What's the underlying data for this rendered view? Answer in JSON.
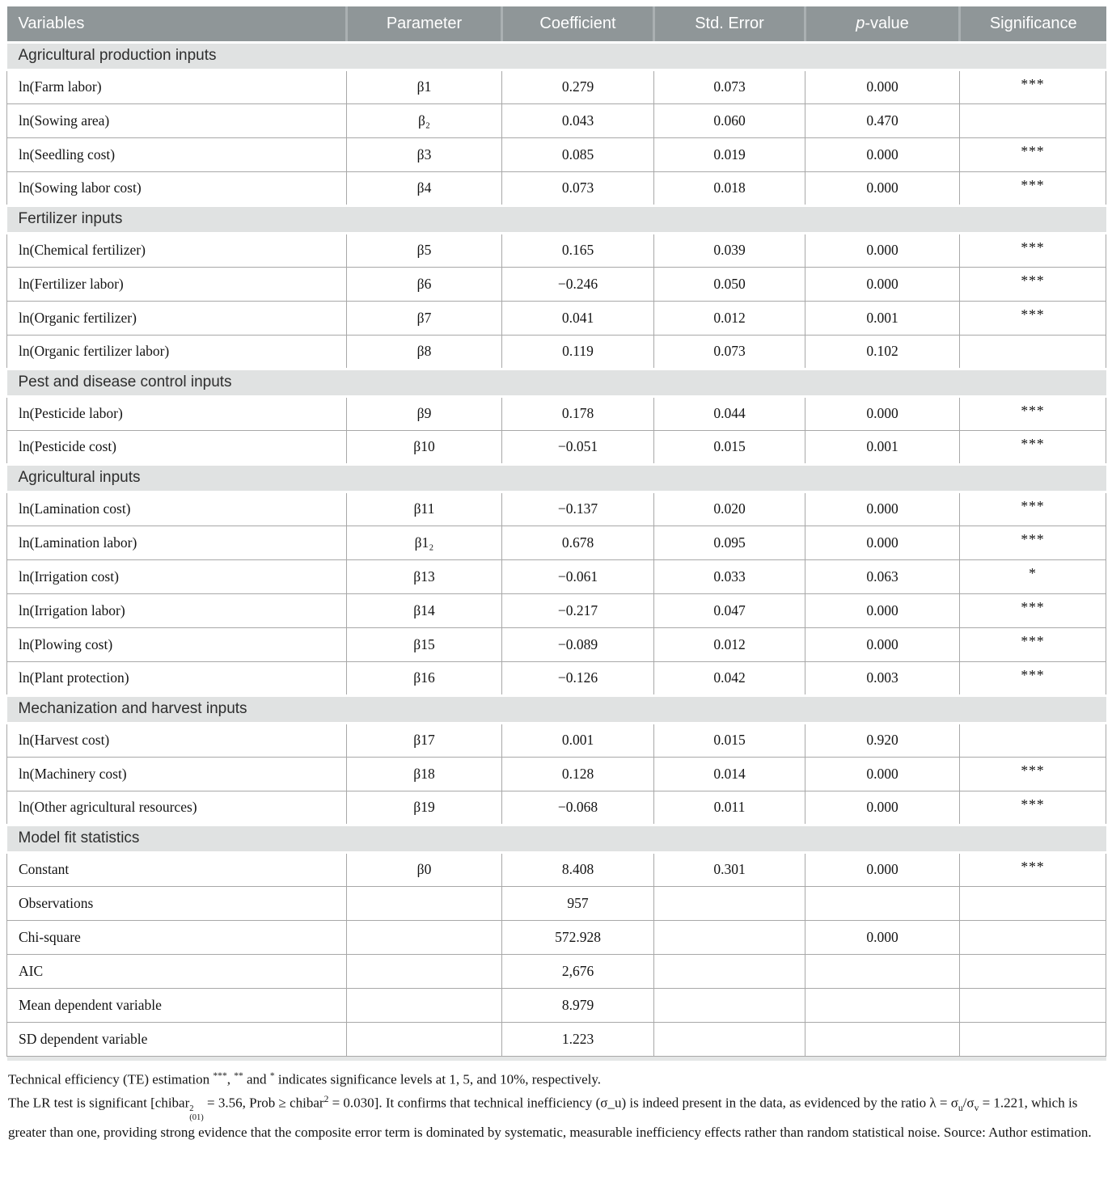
{
  "colors": {
    "header_bg": "#8f9698",
    "header_separator": "#aab0b2",
    "section_bg": "#e0e2e2",
    "cell_border": "#a8a8a8"
  },
  "header": {
    "variables": "Variables",
    "parameter": "Parameter",
    "coefficient": "Coefficient",
    "std_error": "Std. Error",
    "p_value_italic": "p",
    "p_value_rest": "-value",
    "significance": "Significance"
  },
  "table": {
    "sections": [
      {
        "title": "Agricultural production inputs",
        "rows": [
          {
            "variable": "ln(Farm labor)",
            "parameter": "β1",
            "coefficient": "0.279",
            "std_error": "0.073",
            "p_value": "0.000",
            "significance": "***"
          },
          {
            "variable": "ln(Sowing area)",
            "parameter": "β₂",
            "coefficient": "0.043",
            "std_error": "0.060",
            "p_value": "0.470",
            "significance": ""
          },
          {
            "variable": "ln(Seedling cost)",
            "parameter": "β3",
            "coefficient": "0.085",
            "std_error": "0.019",
            "p_value": "0.000",
            "significance": "***"
          },
          {
            "variable": "ln(Sowing labor cost)",
            "parameter": "β4",
            "coefficient": "0.073",
            "std_error": "0.018",
            "p_value": "0.000",
            "significance": "***"
          }
        ]
      },
      {
        "title": "Fertilizer inputs",
        "rows": [
          {
            "variable": "ln(Chemical fertilizer)",
            "parameter": "β5",
            "coefficient": "0.165",
            "std_error": "0.039",
            "p_value": "0.000",
            "significance": "***"
          },
          {
            "variable": "ln(Fertilizer labor)",
            "parameter": "β6",
            "coefficient": "−0.246",
            "std_error": "0.050",
            "p_value": "0.000",
            "significance": "***"
          },
          {
            "variable": "ln(Organic fertilizer)",
            "parameter": "β7",
            "coefficient": "0.041",
            "std_error": "0.012",
            "p_value": "0.001",
            "significance": "***"
          },
          {
            "variable": "ln(Organic fertilizer labor)",
            "parameter": "β8",
            "coefficient": "0.119",
            "std_error": "0.073",
            "p_value": "0.102",
            "significance": ""
          }
        ]
      },
      {
        "title": "Pest and disease control inputs",
        "rows": [
          {
            "variable": "ln(Pesticide labor)",
            "parameter": "β9",
            "coefficient": "0.178",
            "std_error": "0.044",
            "p_value": "0.000",
            "significance": "***"
          },
          {
            "variable": "ln(Pesticide cost)",
            "parameter": "β10",
            "coefficient": "−0.051",
            "std_error": "0.015",
            "p_value": "0.001",
            "significance": "***"
          }
        ]
      },
      {
        "title": "Agricultural inputs",
        "rows": [
          {
            "variable": "ln(Lamination cost)",
            "parameter": "β11",
            "coefficient": "−0.137",
            "std_error": "0.020",
            "p_value": "0.000",
            "significance": "***"
          },
          {
            "variable": "ln(Lamination labor)",
            "parameter": "β1₂",
            "coefficient": "0.678",
            "std_error": "0.095",
            "p_value": "0.000",
            "significance": "***"
          },
          {
            "variable": "ln(Irrigation cost)",
            "parameter": "β13",
            "coefficient": "−0.061",
            "std_error": "0.033",
            "p_value": "0.063",
            "significance": "*"
          },
          {
            "variable": "ln(Irrigation labor)",
            "parameter": "β14",
            "coefficient": "−0.217",
            "std_error": "0.047",
            "p_value": "0.000",
            "significance": "***"
          },
          {
            "variable": "ln(Plowing cost)",
            "parameter": "β15",
            "coefficient": "−0.089",
            "std_error": "0.012",
            "p_value": "0.000",
            "significance": "***"
          },
          {
            "variable": "ln(Plant protection)",
            "parameter": "β16",
            "coefficient": "−0.126",
            "std_error": "0.042",
            "p_value": "0.003",
            "significance": "***"
          }
        ]
      },
      {
        "title": "Mechanization and harvest inputs",
        "rows": [
          {
            "variable": "ln(Harvest cost)",
            "parameter": "β17",
            "coefficient": "0.001",
            "std_error": "0.015",
            "p_value": "0.920",
            "significance": ""
          },
          {
            "variable": "ln(Machinery cost)",
            "parameter": "β18",
            "coefficient": "0.128",
            "std_error": "0.014",
            "p_value": "0.000",
            "significance": "***"
          },
          {
            "variable": "ln(Other agricultural resources)",
            "parameter": "β19",
            "coefficient": "−0.068",
            "std_error": "0.011",
            "p_value": "0.000",
            "significance": "***"
          }
        ]
      },
      {
        "title": "Model fit statistics",
        "rows": [
          {
            "variable": "Constant",
            "parameter": "β0",
            "coefficient": "8.408",
            "std_error": "0.301",
            "p_value": "0.000",
            "significance": "***"
          },
          {
            "variable": "Observations",
            "parameter": "",
            "coefficient": "957",
            "std_error": "",
            "p_value": "",
            "significance": ""
          },
          {
            "variable": "Chi-square",
            "parameter": "",
            "coefficient": "572.928",
            "std_error": "",
            "p_value": "0.000",
            "significance": ""
          },
          {
            "variable": "AIC",
            "parameter": "",
            "coefficient": "2,676",
            "std_error": "",
            "p_value": "",
            "significance": ""
          },
          {
            "variable": "Mean dependent variable",
            "parameter": "",
            "coefficient": "8.979",
            "std_error": "",
            "p_value": "",
            "significance": ""
          },
          {
            "variable": "SD dependent variable",
            "parameter": "",
            "coefficient": "1.223",
            "std_error": "",
            "p_value": "",
            "significance": ""
          }
        ]
      }
    ]
  },
  "footnotes": [
    [
      {
        "t": "Technical efficiency (TE) estimation "
      },
      {
        "sup": "***"
      },
      {
        "t": ", "
      },
      {
        "sup": "**"
      },
      {
        "t": " and "
      },
      {
        "sup": "*"
      },
      {
        "t": " indicates significance levels at 1, 5, and 10%, respectively."
      }
    ],
    [
      {
        "t": "The LR test is significant [chibar"
      },
      {
        "stack": {
          "sup": "2",
          "sub": "(01)"
        }
      },
      {
        "t": " = 3.56, Prob ≥ chibar"
      },
      {
        "sup": "2"
      },
      {
        "t": " = 0.030]. It confirms that technical inefficiency (σ_u) is indeed present in the data, as evidenced by the ratio λ = σ"
      },
      {
        "sub": "u"
      },
      {
        "t": "/σ"
      },
      {
        "sub": "v"
      },
      {
        "t": " = 1.221, which is greater than one, providing strong evidence that the composite error term is dominated by systematic, measurable inefficiency effects rather than random statistical noise. Source: Author estimation."
      }
    ]
  ]
}
